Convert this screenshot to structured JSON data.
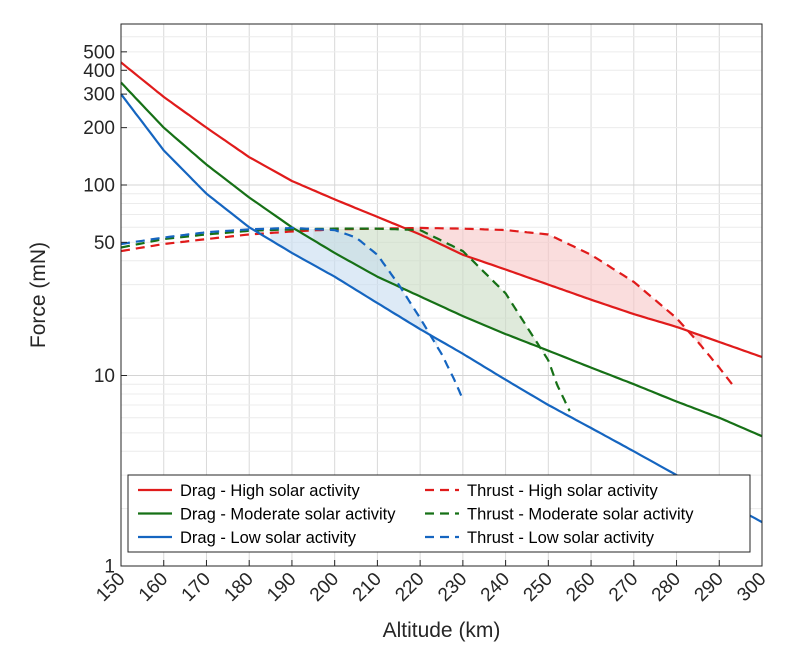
{
  "chart_data": {
    "type": "line",
    "xlabel": "Altitude (km)",
    "ylabel": "Force (mN)",
    "xlim": [
      150,
      300
    ],
    "ylim": [
      1,
      700
    ],
    "yscale": "log",
    "grid": true,
    "legend_placement": "bottom",
    "x_ticks": [
      "150",
      "160",
      "170",
      "180",
      "190",
      "200",
      "210",
      "220",
      "230",
      "240",
      "250",
      "260",
      "270",
      "280",
      "290",
      "300"
    ],
    "y_ticks": [
      {
        "value": 1,
        "label": "1"
      },
      {
        "value": 10,
        "label": "10"
      },
      {
        "value": 50,
        "label": "50"
      },
      {
        "value": 100,
        "label": "100"
      },
      {
        "value": 200,
        "label": "200"
      },
      {
        "value": 300,
        "label": "300"
      },
      {
        "value": 400,
        "label": "400"
      },
      {
        "value": 500,
        "label": "500"
      }
    ],
    "series": [
      {
        "name": "Drag - High solar activity",
        "color": "#e01b1b",
        "dash": false,
        "x": [
          150,
          160,
          170,
          180,
          190,
          200,
          210,
          220,
          230,
          240,
          250,
          260,
          270,
          280,
          290,
          300
        ],
        "y": [
          440,
          290,
          200,
          140,
          105,
          84,
          68,
          55,
          43,
          36,
          30,
          25,
          21,
          18,
          15,
          12.5
        ]
      },
      {
        "name": "Thrust - High solar activity",
        "color": "#e01b1b",
        "dash": true,
        "x": [
          150,
          160,
          170,
          180,
          190,
          200,
          210,
          220,
          230,
          240,
          250,
          260,
          270,
          280,
          285,
          290,
          293
        ],
        "y": [
          45,
          49,
          52,
          55,
          57,
          58.5,
          59,
          59.5,
          59,
          58,
          55,
          43,
          31,
          20,
          15,
          11,
          9
        ]
      },
      {
        "name": "Drag - Moderate solar activity",
        "color": "#167016",
        "dash": false,
        "x": [
          150,
          160,
          170,
          180,
          190,
          200,
          210,
          220,
          230,
          240,
          250,
          260,
          270,
          280,
          290,
          300
        ],
        "y": [
          345,
          200,
          128,
          86,
          60,
          44,
          33,
          26,
          20.5,
          16.5,
          13.5,
          11,
          9,
          7.3,
          6,
          4.8
        ]
      },
      {
        "name": "Thrust - Moderate solar activity",
        "color": "#167016",
        "dash": true,
        "x": [
          150,
          160,
          170,
          180,
          190,
          200,
          210,
          220,
          230,
          240,
          245,
          250,
          252,
          255
        ],
        "y": [
          47,
          52,
          55,
          57.5,
          58.5,
          59,
          59,
          58,
          45,
          27,
          18,
          12,
          9,
          6.5
        ]
      },
      {
        "name": "Drag - Low solar activity",
        "color": "#1565c0",
        "dash": false,
        "x": [
          150,
          160,
          170,
          180,
          190,
          200,
          210,
          220,
          230,
          240,
          250,
          260,
          270,
          280,
          290,
          300
        ],
        "y": [
          300,
          152,
          90,
          60,
          44,
          33,
          24,
          17.5,
          13,
          9.5,
          7,
          5.3,
          4,
          3,
          2.25,
          1.7
        ]
      },
      {
        "name": "Thrust - Low solar activity",
        "color": "#1565c0",
        "dash": true,
        "x": [
          150,
          160,
          170,
          180,
          190,
          200,
          205,
          210,
          215,
          220,
          225,
          228,
          230
        ],
        "y": [
          49,
          53,
          56.5,
          58.5,
          59.5,
          58,
          53,
          43,
          30,
          20,
          13,
          9.5,
          7.5
        ]
      }
    ],
    "legend": [
      {
        "label": "Drag - High solar activity",
        "color": "#e01b1b",
        "dash": false
      },
      {
        "label": "Thrust - High solar activity",
        "color": "#e01b1b",
        "dash": true
      },
      {
        "label": "Drag - Moderate solar activity",
        "color": "#167016",
        "dash": false
      },
      {
        "label": "Thrust - Moderate solar activity",
        "color": "#167016",
        "dash": true
      },
      {
        "label": "Drag - Low solar activity",
        "color": "#1565c0",
        "dash": false
      },
      {
        "label": "Thrust - Low solar activity",
        "color": "#1565c0",
        "dash": true
      }
    ],
    "shaded_regions": [
      {
        "color": "#f7c7c7",
        "between": [
          "Thrust - High solar activity",
          "Drag - High solar activity"
        ],
        "x_range": [
          218,
          286
        ]
      },
      {
        "color": "#c9dcc3",
        "between": [
          "Thrust - Moderate solar activity",
          "Drag - Moderate solar activity"
        ],
        "x_range": [
          195,
          249
        ]
      },
      {
        "color": "#c6dcf0",
        "between": [
          "Thrust - Low solar activity",
          "Drag - Low solar activity"
        ],
        "x_range": [
          185,
          224
        ]
      }
    ]
  }
}
